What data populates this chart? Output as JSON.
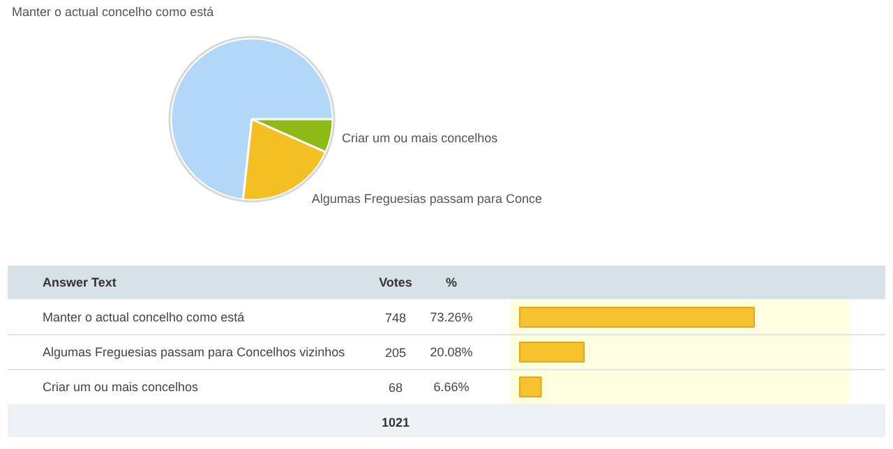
{
  "chart_data": [
    {
      "type": "pie",
      "categories": [
        "Manter o actual concelho como está",
        "Algumas Freguesias passam para Conce",
        "Criar um ou mais concelhos"
      ],
      "values": [
        73.26,
        20.08,
        6.66
      ],
      "colors": [
        "#b3d7f7",
        "#f4bf22",
        "#8dba16"
      ]
    },
    {
      "type": "bar",
      "orientation": "horizontal",
      "categories": [
        "Manter o actual concelho como está",
        "Algumas Freguesias passam para Concelhos vizinhos",
        "Criar um ou mais concelhos"
      ],
      "values": [
        73.26,
        20.08,
        6.66
      ],
      "color": "#f6c22f",
      "value_labels": [
        "73.26%",
        "20.08%",
        "6.66%"
      ],
      "annotations": [
        "Answer Text",
        "Votes",
        "%",
        "1021",
        "748",
        "205",
        "68"
      ]
    }
  ]
}
